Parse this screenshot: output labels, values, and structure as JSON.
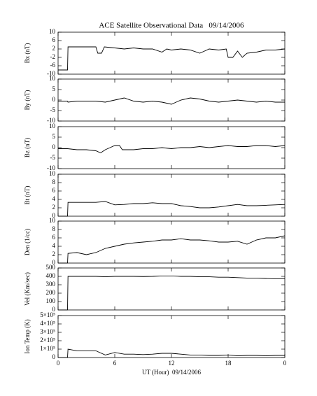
{
  "chart_data": [
    {
      "type": "line",
      "title": "ACE Satellite Observational Data   09/14/2006",
      "ylabel": "Bx (nT)",
      "color": "#000000",
      "xlim": [
        0,
        24
      ],
      "ylim": [
        -10,
        10
      ],
      "yticks": [
        -10,
        -6,
        -2,
        2,
        6,
        10
      ],
      "x": [
        0,
        1,
        1.05,
        2,
        3,
        4,
        4.2,
        4.6,
        4.9,
        6,
        7,
        8,
        9,
        10,
        11,
        11.5,
        12,
        13,
        14,
        15,
        15.5,
        16,
        17,
        17.8,
        18,
        18.5,
        19,
        19.5,
        20,
        21,
        22,
        23,
        24
      ],
      "values": [
        -8,
        -8,
        3,
        3,
        3,
        3,
        0,
        0,
        3,
        2.5,
        2,
        2.5,
        2,
        2,
        0.5,
        2,
        1.5,
        2,
        1.5,
        0,
        1,
        2,
        1.5,
        2,
        -2,
        -2,
        1,
        -2,
        0,
        0.5,
        1.5,
        1.5,
        2
      ]
    },
    {
      "type": "line",
      "ylabel": "By (nT)",
      "color": "#000000",
      "xlim": [
        0,
        24
      ],
      "ylim": [
        -10,
        10
      ],
      "yticks": [
        -10,
        -5,
        0,
        5,
        10
      ],
      "x": [
        0,
        1,
        1.05,
        2,
        3,
        4,
        5,
        6,
        7,
        8,
        9,
        10,
        11,
        12,
        13,
        14,
        15,
        16,
        17,
        18,
        19,
        20,
        21,
        22,
        23,
        24
      ],
      "values": [
        -0.5,
        -0.5,
        -1,
        -0.5,
        -0.5,
        -0.5,
        -1,
        0,
        1,
        -0.5,
        -1,
        -0.5,
        -1,
        -2,
        0,
        1,
        0.5,
        -0.5,
        -1,
        -0.5,
        0,
        -0.5,
        -1,
        -0.5,
        -1,
        -1
      ]
    },
    {
      "type": "line",
      "ylabel": "Bz (nT)",
      "color": "#000000",
      "xlim": [
        0,
        24
      ],
      "ylim": [
        -10,
        10
      ],
      "yticks": [
        -10,
        -5,
        0,
        5,
        10
      ],
      "x": [
        0,
        1,
        2,
        3,
        4,
        4.5,
        5,
        5.5,
        6,
        6.5,
        6.8,
        7,
        8,
        9,
        10,
        11,
        12,
        13,
        14,
        15,
        16,
        17,
        18,
        19,
        20,
        21,
        22,
        23,
        24
      ],
      "values": [
        -0.5,
        -0.5,
        -1,
        -1,
        -1.5,
        -2.5,
        -1,
        0,
        1,
        1,
        -1,
        -1,
        -1,
        -0.5,
        -0.5,
        0,
        -0.5,
        0,
        0,
        0.5,
        0,
        0.5,
        1,
        0.5,
        0.5,
        1,
        1,
        0.5,
        1
      ]
    },
    {
      "type": "line",
      "ylabel": "Bt (nT)",
      "color": "#000000",
      "xlim": [
        0,
        24
      ],
      "ylim": [
        0,
        10
      ],
      "yticks": [
        0,
        2,
        4,
        6,
        8,
        10
      ],
      "x": [
        0,
        1,
        1.05,
        2,
        3,
        4,
        5,
        6,
        7,
        8,
        9,
        10,
        11,
        12,
        13,
        14,
        15,
        16,
        17,
        18,
        19,
        20,
        21,
        22,
        23,
        24
      ],
      "values": [
        0,
        0,
        3.3,
        3.3,
        3.3,
        3.3,
        3.5,
        2.7,
        2.8,
        3,
        3,
        3.2,
        3,
        3,
        2.5,
        2.3,
        2,
        2,
        2.2,
        2.5,
        2.8,
        2.5,
        2.5,
        2.6,
        2.7,
        2.8
      ]
    },
    {
      "type": "line",
      "ylabel": "Den (1/cc)",
      "color": "#000000",
      "xlim": [
        0,
        24
      ],
      "ylim": [
        0,
        10
      ],
      "yticks": [
        0,
        2,
        4,
        6,
        8,
        10
      ],
      "x": [
        0,
        1,
        1.05,
        2,
        3,
        4,
        5,
        6,
        7,
        8,
        9,
        10,
        11,
        12,
        13,
        14,
        15,
        16,
        17,
        18,
        19,
        20,
        21,
        22,
        23,
        24
      ],
      "values": [
        0,
        0,
        2.3,
        2.5,
        2,
        2.5,
        3.5,
        4,
        4.5,
        4.8,
        5,
        5.2,
        5.5,
        5.5,
        5.8,
        5.5,
        5.5,
        5.3,
        5,
        5,
        5.2,
        4.5,
        5.5,
        6,
        6,
        6.5
      ]
    },
    {
      "type": "line",
      "ylabel": "Vel (Km/sec)",
      "color": "#000000",
      "xlim": [
        0,
        24
      ],
      "ylim": [
        0,
        500
      ],
      "yticks": [
        0,
        100,
        200,
        300,
        400,
        500
      ],
      "x": [
        0,
        1,
        1.05,
        2,
        3,
        4,
        5,
        6,
        7,
        8,
        9,
        10,
        11,
        12,
        13,
        14,
        15,
        16,
        17,
        18,
        19,
        20,
        21,
        22,
        23,
        24
      ],
      "values": [
        0,
        0,
        400,
        400,
        400,
        400,
        395,
        400,
        400,
        400,
        398,
        400,
        405,
        405,
        400,
        400,
        395,
        395,
        390,
        390,
        385,
        380,
        380,
        375,
        370,
        370
      ]
    },
    {
      "type": "line",
      "ylabel": "Ion Temp (K)",
      "xlabel": "UT (Hour)  09/14/2006",
      "color": "#000000",
      "xlim": [
        0,
        24
      ],
      "ylim": [
        0,
        500000
      ],
      "yticks": [
        0,
        {
          "value": 100000,
          "label": "1×10⁵"
        },
        {
          "value": 200000,
          "label": "2×10⁵"
        },
        {
          "value": 300000,
          "label": "3×10⁵"
        },
        {
          "value": 400000,
          "label": "4×10⁵"
        },
        {
          "value": 500000,
          "label": "5×10⁵"
        }
      ],
      "xticks": [
        0,
        6,
        12,
        18,
        {
          "value": 24,
          "label": "0"
        }
      ],
      "x": [
        0,
        1,
        1.05,
        2,
        3,
        4,
        5,
        6,
        7,
        8,
        9,
        10,
        11,
        12,
        13,
        14,
        15,
        16,
        17,
        18,
        19,
        20,
        21,
        22,
        23,
        24
      ],
      "values": [
        0,
        0,
        100000,
        80000,
        80000,
        80000,
        30000,
        60000,
        40000,
        40000,
        35000,
        40000,
        50000,
        50000,
        40000,
        30000,
        30000,
        25000,
        25000,
        30000,
        20000,
        25000,
        25000,
        20000,
        25000,
        25000
      ]
    }
  ]
}
